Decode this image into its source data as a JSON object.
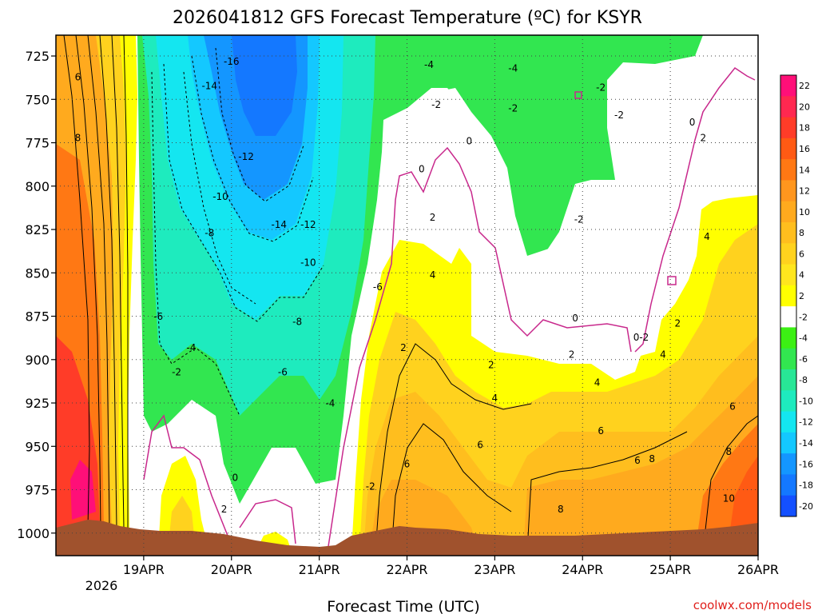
{
  "chart_data": {
    "type": "heatmap",
    "title": "2026041812 GFS Forecast Temperature (ºC) for KSYR",
    "xlabel": "Forecast Time (UTC)",
    "ylabel": "",
    "x_ticks": [
      "19APR",
      "20APR",
      "21APR",
      "22APR",
      "23APR",
      "24APR",
      "25APR",
      "26APR"
    ],
    "x_year": "2026",
    "x_range_hours": [
      -12,
      180
    ],
    "x_tick_hours": [
      12,
      36,
      60,
      84,
      108,
      132,
      156,
      180
    ],
    "y_ticks": [
      "725",
      "750",
      "775",
      "800",
      "825",
      "850",
      "875",
      "900",
      "925",
      "950",
      "975",
      "1000"
    ],
    "y_range_hpa": [
      713,
      1013
    ],
    "grid": true,
    "colorbar": {
      "labels": [
        "22",
        "20",
        "18",
        "16",
        "14",
        "12",
        "10",
        "8",
        "6",
        "4",
        "2",
        "-2",
        "-4",
        "-6",
        "-8",
        "-10",
        "-12",
        "-14",
        "-16",
        "-18",
        "-20"
      ],
      "colors": [
        "#ff0f78",
        "#ff2850",
        "#ff3c28",
        "#ff5a14",
        "#ff7814",
        "#ff961e",
        "#ffaa1e",
        "#ffbe1e",
        "#ffd21e",
        "#ffe61e",
        "#ffff00",
        "#ffffff",
        "#3cf014",
        "#32e650",
        "#28e696",
        "#1eebbe",
        "#14e6f0",
        "#14c8ff",
        "#1496ff",
        "#1478ff",
        "#1450ff"
      ]
    },
    "contour_labels": [
      {
        "t": "6",
        "h": -6,
        "p": 739
      },
      {
        "t": "8",
        "h": -6,
        "p": 774
      },
      {
        "t": "-16",
        "h": 36,
        "p": 730
      },
      {
        "t": "-14",
        "h": 30,
        "p": 744
      },
      {
        "t": "-12",
        "h": 40,
        "p": 785
      },
      {
        "t": "-10",
        "h": 33,
        "p": 808
      },
      {
        "t": "-8",
        "h": 30,
        "p": 829
      },
      {
        "t": "-6",
        "h": 16,
        "p": 877
      },
      {
        "t": "-4",
        "h": 25,
        "p": 895
      },
      {
        "t": "-2",
        "h": 21,
        "p": 909
      },
      {
        "t": "0",
        "h": 37,
        "p": 970
      },
      {
        "t": "2",
        "h": 34,
        "p": 988
      },
      {
        "t": "-14",
        "h": 49,
        "p": 824
      },
      {
        "t": "-12",
        "h": 57,
        "p": 824
      },
      {
        "t": "-10",
        "h": 57,
        "p": 846
      },
      {
        "t": "-8",
        "h": 54,
        "p": 880
      },
      {
        "t": "-6",
        "h": 50,
        "p": 909
      },
      {
        "t": "-4",
        "h": 63,
        "p": 927
      },
      {
        "t": "-2",
        "h": 74,
        "p": 975
      },
      {
        "t": "-6",
        "h": 76,
        "p": 860
      },
      {
        "t": "-4",
        "h": 90,
        "p": 732
      },
      {
        "t": "-4",
        "h": 113,
        "p": 734
      },
      {
        "t": "-2",
        "h": 92,
        "p": 755
      },
      {
        "t": "-2",
        "h": 113,
        "p": 757
      },
      {
        "t": "0",
        "h": 88,
        "p": 792
      },
      {
        "t": "0",
        "h": 101,
        "p": 776
      },
      {
        "t": "2",
        "h": 91,
        "p": 820
      },
      {
        "t": "4",
        "h": 91,
        "p": 853
      },
      {
        "t": "2",
        "h": 83,
        "p": 895
      },
      {
        "t": "6",
        "h": 84,
        "p": 962
      },
      {
        "t": "2",
        "h": 107,
        "p": 905
      },
      {
        "t": "4",
        "h": 108,
        "p": 924
      },
      {
        "t": "6",
        "h": 104,
        "p": 951
      },
      {
        "t": "2",
        "h": 129,
        "p": 899
      },
      {
        "t": "4",
        "h": 136,
        "p": 915
      },
      {
        "t": "6",
        "h": 137,
        "p": 943
      },
      {
        "t": "8",
        "h": 126,
        "p": 988
      },
      {
        "t": "0",
        "h": 130,
        "p": 878
      },
      {
        "t": "-2",
        "h": 131,
        "p": 821
      },
      {
        "t": "-2",
        "h": 137,
        "p": 745
      },
      {
        "t": "-2",
        "h": 142,
        "p": 761
      },
      {
        "t": "0",
        "h": 162,
        "p": 765
      },
      {
        "t": "2",
        "h": 165,
        "p": 774
      },
      {
        "t": "4",
        "h": 166,
        "p": 831
      },
      {
        "t": "0-2",
        "h": 148,
        "p": 889
      },
      {
        "t": "2",
        "h": 158,
        "p": 881
      },
      {
        "t": "4",
        "h": 154,
        "p": 899
      },
      {
        "t": "6",
        "h": 147,
        "p": 960
      },
      {
        "t": "8",
        "h": 151,
        "p": 959
      },
      {
        "t": "6",
        "h": 173,
        "p": 929
      },
      {
        "t": "8",
        "h": 172,
        "p": 955
      },
      {
        "t": "10",
        "h": 172,
        "p": 982
      }
    ]
  },
  "footer": {
    "credit": "coolwx.com/models"
  }
}
